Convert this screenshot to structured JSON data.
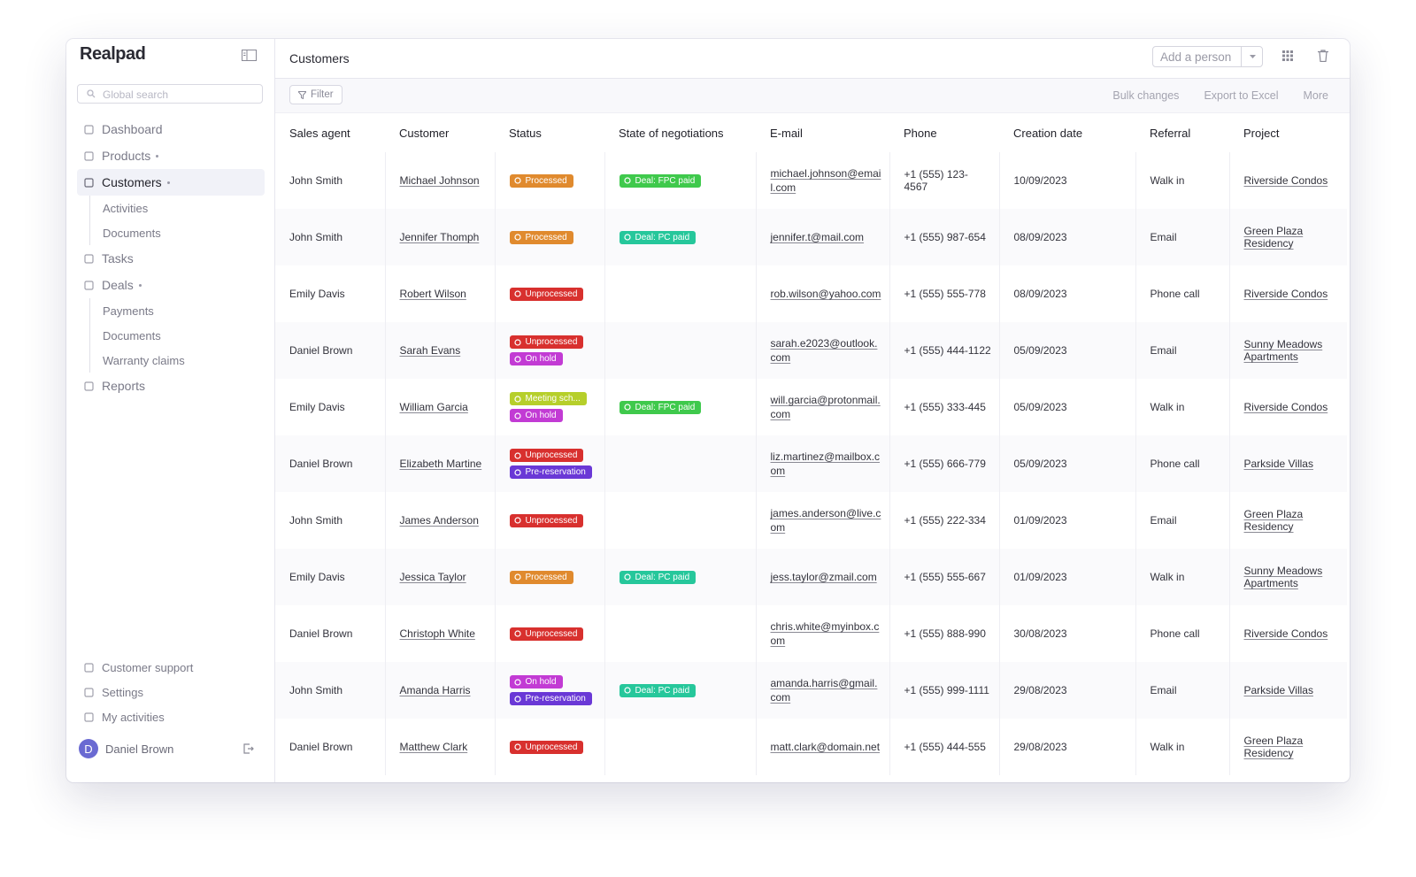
{
  "sidebar": {
    "brand": "Realpad",
    "search_placeholder": "Global search",
    "nav": [
      {
        "label": "Dashboard"
      },
      {
        "label": "Products",
        "dot": true
      },
      {
        "label": "Customers",
        "dot": true,
        "active": true,
        "children": [
          "Activities",
          "Documents"
        ]
      },
      {
        "label": "Tasks"
      },
      {
        "label": "Deals",
        "dot": true,
        "children": [
          "Payments",
          "Documents",
          "Warranty claims"
        ]
      },
      {
        "label": "Reports"
      }
    ],
    "bottom_nav": [
      "Customer support",
      "Settings",
      "My activities"
    ],
    "user": {
      "initial": "D",
      "name": "Daniel Brown"
    }
  },
  "header": {
    "title": "Customers",
    "add_button": "Add a person"
  },
  "toolbar": {
    "filter": "Filter",
    "actions": [
      "Bulk changes",
      "Export to Excel",
      "More"
    ]
  },
  "table": {
    "columns": [
      "Sales agent",
      "Customer",
      "Status",
      "State of negotiations",
      "E-mail",
      "Phone",
      "Creation date",
      "Referral",
      "Project"
    ],
    "rows": [
      {
        "sales_agent": "John Smith",
        "customer": "Michael Johnson",
        "status": [
          {
            "label": "Processed",
            "color": "#e08a2e"
          }
        ],
        "negotiations": [
          {
            "label": "Deal: FPC paid",
            "color": "#3fc94c"
          }
        ],
        "email": "michael.johnson@email.com",
        "phone": "+1 (555) 123-4567",
        "created": "10/09/2023",
        "referral": "Walk in",
        "project": "Riverside Condos"
      },
      {
        "sales_agent": "John Smith",
        "customer": "Jennifer Thomph",
        "status": [
          {
            "label": "Processed",
            "color": "#e08a2e"
          }
        ],
        "negotiations": [
          {
            "label": "Deal: PC paid",
            "color": "#26c79b"
          }
        ],
        "email": "jennifer.t@mail.com",
        "phone": "+1 (555) 987-654",
        "created": "08/09/2023",
        "referral": "Email",
        "project": "Green Plaza Residency"
      },
      {
        "sales_agent": "Emily Davis",
        "customer": "Robert Wilson",
        "status": [
          {
            "label": "Unprocessed",
            "color": "#d8302e"
          }
        ],
        "negotiations": [],
        "email": "rob.wilson@yahoo.com",
        "phone": "+1 (555) 555-778",
        "created": "08/09/2023",
        "referral": "Phone call",
        "project": "Riverside Condos"
      },
      {
        "sales_agent": "Daniel Brown",
        "customer": "Sarah Evans",
        "status": [
          {
            "label": "Unprocessed",
            "color": "#d8302e"
          },
          {
            "label": "On hold",
            "color": "#c23bd4"
          }
        ],
        "negotiations": [],
        "email": "sarah.e2023@outlook.com",
        "phone": "+1 (555) 444-1122",
        "created": "05/09/2023",
        "referral": "Email",
        "project": "Sunny Meadows Apartments"
      },
      {
        "sales_agent": "Emily Davis",
        "customer": "William Garcia",
        "status": [
          {
            "label": "Meeting sch...",
            "color": "#b6cf2b"
          },
          {
            "label": "On hold",
            "color": "#c23bd4"
          }
        ],
        "negotiations": [
          {
            "label": "Deal: FPC paid",
            "color": "#3fc94c"
          }
        ],
        "email": "will.garcia@protonmail.com",
        "phone": "+1 (555) 333-445",
        "created": "05/09/2023",
        "referral": "Walk in",
        "project": "Riverside Condos"
      },
      {
        "sales_agent": "Daniel Brown",
        "customer": "Elizabeth Martine",
        "status": [
          {
            "label": "Unprocessed",
            "color": "#d8302e"
          },
          {
            "label": "Pre-reservation",
            "color": "#6a38d6"
          }
        ],
        "negotiations": [],
        "email": "liz.martinez@mailbox.com",
        "phone": "+1 (555) 666-779",
        "created": "05/09/2023",
        "referral": "Phone call",
        "project": "Parkside Villas"
      },
      {
        "sales_agent": "John Smith",
        "customer": "James Anderson",
        "status": [
          {
            "label": "Unprocessed",
            "color": "#d8302e"
          }
        ],
        "negotiations": [],
        "email": "james.anderson@live.com",
        "phone": "+1 (555) 222-334",
        "created": "01/09/2023",
        "referral": "Email",
        "project": "Green Plaza Residency"
      },
      {
        "sales_agent": "Emily Davis",
        "customer": "Jessica Taylor",
        "status": [
          {
            "label": "Processed",
            "color": "#e08a2e"
          }
        ],
        "negotiations": [
          {
            "label": "Deal: PC paid",
            "color": "#26c79b"
          }
        ],
        "email": "jess.taylor@zmail.com",
        "phone": "+1 (555) 555-667",
        "created": "01/09/2023",
        "referral": "Walk in",
        "project": "Sunny Meadows Apartments"
      },
      {
        "sales_agent": "Daniel Brown",
        "customer": "Christoph White",
        "status": [
          {
            "label": "Unprocessed",
            "color": "#d8302e"
          }
        ],
        "negotiations": [],
        "email": "chris.white@myinbox.com",
        "phone": "+1 (555) 888-990",
        "created": "30/08/2023",
        "referral": "Phone call",
        "project": "Riverside Condos"
      },
      {
        "sales_agent": "John Smith",
        "customer": "Amanda Harris",
        "status": [
          {
            "label": "On hold",
            "color": "#c23bd4"
          },
          {
            "label": "Pre-reservation",
            "color": "#6a38d6"
          }
        ],
        "negotiations": [
          {
            "label": "Deal: PC paid",
            "color": "#26c79b"
          }
        ],
        "email": "amanda.harris@gmail.com",
        "phone": "+1 (555) 999-1111",
        "created": "29/08/2023",
        "referral": "Email",
        "project": "Parkside Villas"
      },
      {
        "sales_agent": "Daniel Brown",
        "customer": "Matthew Clark",
        "status": [
          {
            "label": "Unprocessed",
            "color": "#d8302e"
          }
        ],
        "negotiations": [],
        "email": "matt.clark@domain.net",
        "phone": "+1 (555) 444-555",
        "created": "29/08/2023",
        "referral": "Walk in",
        "project": "Green Plaza Residency"
      }
    ]
  }
}
